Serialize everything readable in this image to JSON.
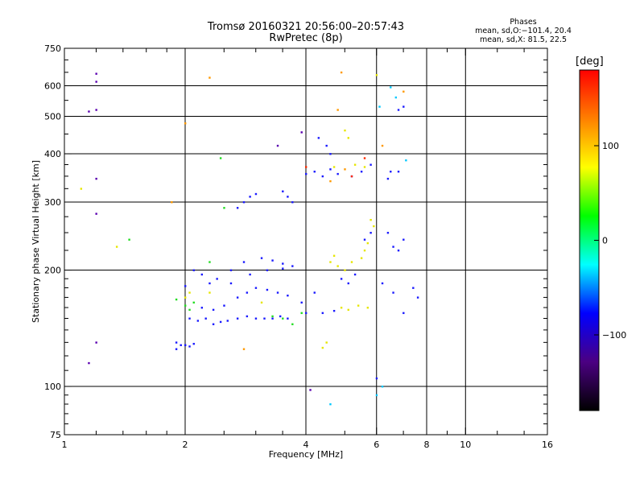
{
  "header": {
    "title_line1": "Tromsø 20160321 20:56:00–20:57:43",
    "title_line2": "RwPretec (8p)"
  },
  "phase_info": {
    "heading": "Phases",
    "ox_line": "mean, sd,O:−101.4, 20.4",
    "x_line": "mean, sd,X:  81.5, 22.5"
  },
  "colorbar": {
    "unit": "[deg]",
    "range": [
      -180,
      180
    ],
    "ticks": [
      "100",
      "0",
      "−100"
    ],
    "tick_values": [
      100,
      0,
      -100
    ],
    "colors": [
      "#000000",
      "#4b0082",
      "#0000ff",
      "#00ffff",
      "#00ff00",
      "#ffff00",
      "#ff8000",
      "#ff0000"
    ]
  },
  "chart_data": {
    "type": "scatter",
    "title": "Tromsø 20160321 20:56:00–20:57:43",
    "subtitle": "RwPretec (8p)",
    "xlabel": "Frequency [MHz]",
    "ylabel": "Stationary phase Virtual Height [km]",
    "x_scale": "log",
    "y_scale": "log",
    "xlim": [
      1,
      16
    ],
    "ylim": [
      75,
      750
    ],
    "grid": true,
    "x_major_ticks": [
      1,
      2,
      4,
      6,
      8,
      10,
      16
    ],
    "x_tick_labels": [
      "1",
      "2",
      "4",
      "6",
      "8",
      "10",
      "16"
    ],
    "x_gridlines": [
      2,
      4,
      6,
      8,
      10
    ],
    "y_major_ticks": [
      75,
      100,
      200,
      300,
      400,
      500,
      600,
      750
    ],
    "y_tick_labels": [
      "75",
      "100",
      "200",
      "300",
      "400",
      "500",
      "600",
      "750"
    ],
    "y_gridlines": [
      100,
      200,
      300,
      400,
      500,
      600
    ],
    "x_minor_ticks": [
      1.2,
      1.4,
      1.6,
      1.8,
      2.5,
      3,
      3.5,
      5,
      7,
      9,
      12,
      14
    ],
    "y_minor_ticks": [
      80,
      85,
      90,
      95,
      110,
      120,
      130,
      140,
      150,
      160,
      170,
      180,
      190,
      225,
      250,
      275,
      325,
      350,
      375,
      450,
      550,
      650,
      700
    ],
    "series": [
      {
        "color": "purple",
        "points": [
          [
            1.2,
            645
          ],
          [
            1.2,
            615
          ],
          [
            1.15,
            515
          ],
          [
            1.2,
            520
          ],
          [
            1.2,
            345
          ],
          [
            1.2,
            280
          ],
          [
            1.15,
            115
          ],
          [
            1.2,
            130
          ],
          [
            3.4,
            420
          ],
          [
            3.9,
            455
          ],
          [
            4.1,
            98
          ]
        ]
      },
      {
        "color": "blue",
        "points": [
          [
            1.9,
            130
          ],
          [
            1.95,
            128
          ],
          [
            2.0,
            128
          ],
          [
            2.05,
            127
          ],
          [
            2.1,
            129
          ],
          [
            1.9,
            125
          ],
          [
            2.05,
            150
          ],
          [
            2.15,
            148
          ],
          [
            2.25,
            150
          ],
          [
            2.35,
            145
          ],
          [
            2.45,
            147
          ],
          [
            2.55,
            148
          ],
          [
            2.7,
            150
          ],
          [
            2.85,
            152
          ],
          [
            3.0,
            150
          ],
          [
            3.15,
            150
          ],
          [
            3.3,
            150
          ],
          [
            3.45,
            152
          ],
          [
            3.6,
            150
          ],
          [
            2.2,
            160
          ],
          [
            2.35,
            158
          ],
          [
            2.5,
            162
          ],
          [
            2.7,
            170
          ],
          [
            2.85,
            175
          ],
          [
            3.0,
            180
          ],
          [
            3.2,
            178
          ],
          [
            3.4,
            175
          ],
          [
            3.6,
            172
          ],
          [
            2.4,
            190
          ],
          [
            2.6,
            200
          ],
          [
            2.8,
            210
          ],
          [
            3.1,
            215
          ],
          [
            3.3,
            212
          ],
          [
            3.5,
            208
          ],
          [
            2.6,
            185
          ],
          [
            2.9,
            195
          ],
          [
            3.2,
            200
          ],
          [
            3.5,
            202
          ],
          [
            3.7,
            205
          ],
          [
            2.7,
            290
          ],
          [
            2.8,
            300
          ],
          [
            2.9,
            310
          ],
          [
            3.0,
            315
          ],
          [
            3.5,
            320
          ],
          [
            3.6,
            310
          ],
          [
            3.7,
            300
          ],
          [
            4.0,
            355
          ],
          [
            4.2,
            360
          ],
          [
            4.4,
            350
          ],
          [
            4.6,
            365
          ],
          [
            4.8,
            355
          ],
          [
            5.2,
            350
          ],
          [
            5.5,
            360
          ],
          [
            5.8,
            375
          ],
          [
            4.3,
            440
          ],
          [
            4.5,
            420
          ],
          [
            4.6,
            400
          ],
          [
            4.9,
            190
          ],
          [
            5.1,
            185
          ],
          [
            5.3,
            195
          ],
          [
            5.6,
            240
          ],
          [
            5.8,
            250
          ],
          [
            6.4,
            250
          ],
          [
            6.6,
            230
          ],
          [
            6.8,
            225
          ],
          [
            7.0,
            240
          ],
          [
            4.0,
            155
          ],
          [
            4.4,
            155
          ],
          [
            4.7,
            157
          ],
          [
            6.0,
            105
          ],
          [
            6.2,
            185
          ],
          [
            6.6,
            175
          ],
          [
            7.0,
            155
          ],
          [
            7.6,
            170
          ],
          [
            7.4,
            180
          ],
          [
            6.4,
            345
          ],
          [
            6.5,
            360
          ],
          [
            6.8,
            360
          ],
          [
            2.1,
            200
          ],
          [
            2.2,
            195
          ],
          [
            2.3,
            185
          ],
          [
            2.0,
            182
          ],
          [
            3.9,
            165
          ],
          [
            4.2,
            175
          ],
          [
            6.8,
            520
          ],
          [
            7.0,
            530
          ]
        ]
      },
      {
        "color": "cyan",
        "points": [
          [
            6.5,
            595
          ],
          [
            6.1,
            530
          ],
          [
            6.7,
            560
          ],
          [
            7.1,
            385
          ],
          [
            6.2,
            100
          ],
          [
            4.6,
            90
          ],
          [
            6.0,
            95
          ]
        ]
      },
      {
        "color": "green",
        "points": [
          [
            1.9,
            168
          ],
          [
            2.0,
            162
          ],
          [
            2.05,
            158
          ],
          [
            2.1,
            165
          ],
          [
            3.3,
            152
          ],
          [
            3.5,
            150
          ],
          [
            3.7,
            145
          ],
          [
            3.9,
            155
          ],
          [
            1.45,
            240
          ],
          [
            2.45,
            390
          ],
          [
            2.5,
            290
          ],
          [
            2.3,
            210
          ]
        ]
      },
      {
        "color": "yellow",
        "points": [
          [
            2.0,
            170
          ],
          [
            2.05,
            175
          ],
          [
            4.6,
            210
          ],
          [
            4.8,
            205
          ],
          [
            5.0,
            200
          ],
          [
            5.2,
            210
          ],
          [
            4.7,
            218
          ],
          [
            5.5,
            215
          ],
          [
            5.6,
            225
          ],
          [
            5.7,
            235
          ],
          [
            5.9,
            260
          ],
          [
            5.8,
            270
          ],
          [
            4.9,
            160
          ],
          [
            5.1,
            158
          ],
          [
            5.4,
            162
          ],
          [
            5.7,
            160
          ],
          [
            6.0,
            640
          ],
          [
            5.0,
            460
          ],
          [
            5.1,
            440
          ],
          [
            4.7,
            370
          ],
          [
            5.3,
            375
          ],
          [
            5.6,
            370
          ],
          [
            1.1,
            325
          ],
          [
            1.35,
            230
          ],
          [
            2.3,
            175
          ],
          [
            3.1,
            165
          ],
          [
            4.5,
            130
          ],
          [
            4.4,
            126
          ]
        ]
      },
      {
        "color": "orange",
        "points": [
          [
            2.3,
            630
          ],
          [
            4.9,
            650
          ],
          [
            4.8,
            520
          ],
          [
            4.6,
            340
          ],
          [
            5.0,
            365
          ],
          [
            7.0,
            580
          ],
          [
            6.2,
            420
          ],
          [
            2.0,
            480
          ],
          [
            1.85,
            300
          ],
          [
            2.8,
            125
          ]
        ]
      },
      {
        "color": "red",
        "points": [
          [
            5.2,
            350
          ],
          [
            5.6,
            390
          ],
          [
            4.0,
            370
          ]
        ]
      }
    ]
  }
}
